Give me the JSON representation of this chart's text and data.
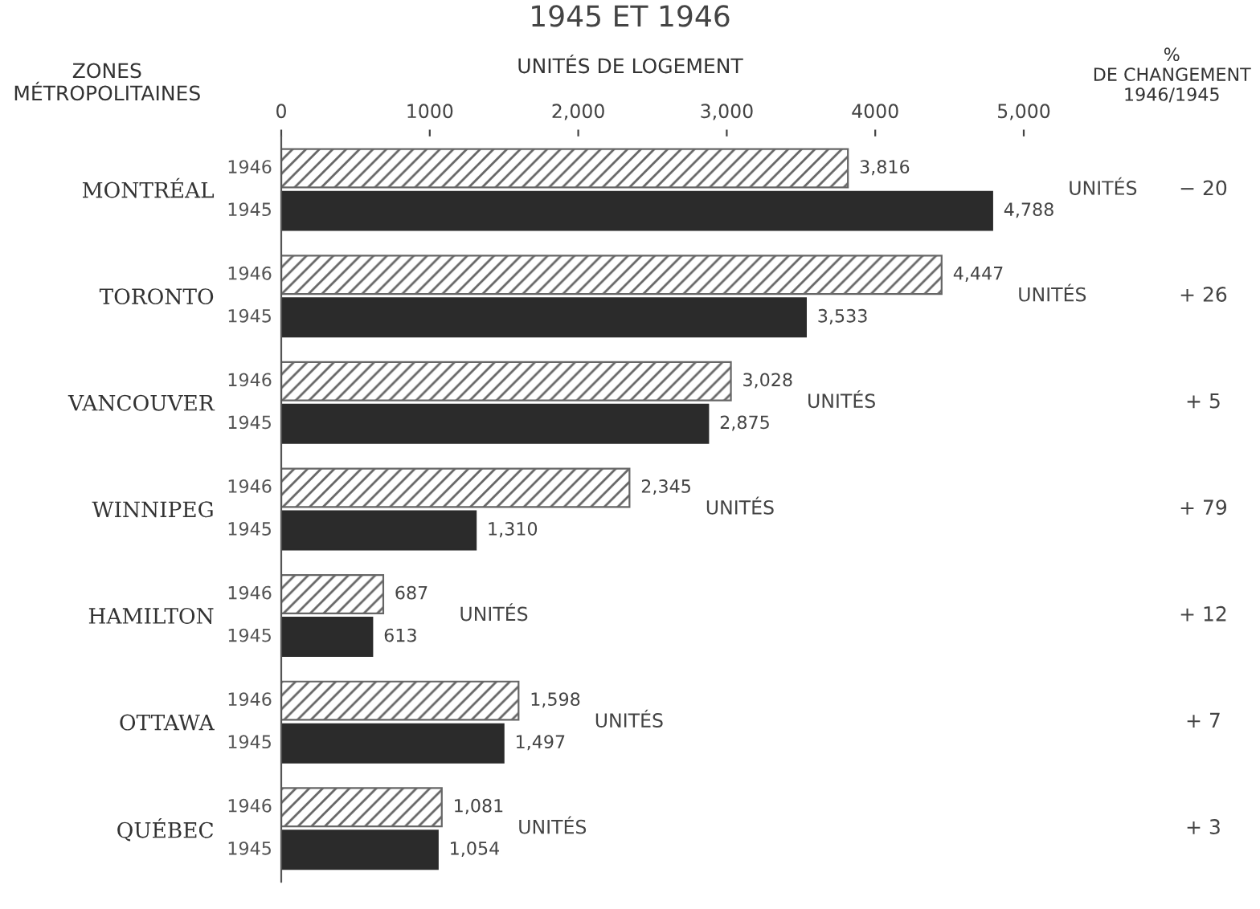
{
  "chart_data": {
    "type": "bar",
    "orientation": "horizontal",
    "title": "1945 ET 1946",
    "xlabel": "UNITÉS DE LOGEMENT",
    "ylabel": "ZONES\nMÉTROPOLITAINES",
    "categories": [
      "MONTRÉAL",
      "TORONTO",
      "VANCOUVER",
      "WINNIPEG",
      "HAMILTON",
      "OTTAWA",
      "QUÉBEC"
    ],
    "series": [
      {
        "name": "1946",
        "color": "#666666",
        "values": [
          3816,
          4447,
          3028,
          2345,
          687,
          1598,
          1081
        ],
        "value_labels": [
          "3,816",
          "4,447",
          "3,028",
          "2,345",
          "687",
          "1,598",
          "1,081"
        ]
      },
      {
        "name": "1945",
        "color": "#2b2b2b",
        "values": [
          4788,
          3533,
          2875,
          1310,
          613,
          1497,
          1054
        ],
        "value_labels": [
          "4,788",
          "3,533",
          "2,875",
          "1,310",
          "613",
          "1,497",
          "1,054"
        ]
      }
    ],
    "xlim": [
      0,
      5000
    ],
    "xticks": [
      0,
      {
        "value": 1000,
        "label": "1000"
      },
      {
        "value": 2000,
        "label": "2,000"
      },
      {
        "value": 3000,
        "label": "3,000"
      },
      {
        "value": 4000,
        "label": "4000"
      },
      {
        "value": 5000,
        "label": "5,000"
      }
    ],
    "grid": false,
    "legend": false,
    "annotations": [
      "%\nDE CHANGEMENT\n1946/1945",
      "UNITÉS",
      "UNITÉS",
      "UNITÉS",
      "UNITÉS",
      "UNITÉS",
      "UNITÉS",
      "UNITÉS",
      "− 20",
      "+ 26",
      "+ 5",
      "+ 79",
      "+ 12",
      "+ 7",
      "+ 3"
    ]
  }
}
